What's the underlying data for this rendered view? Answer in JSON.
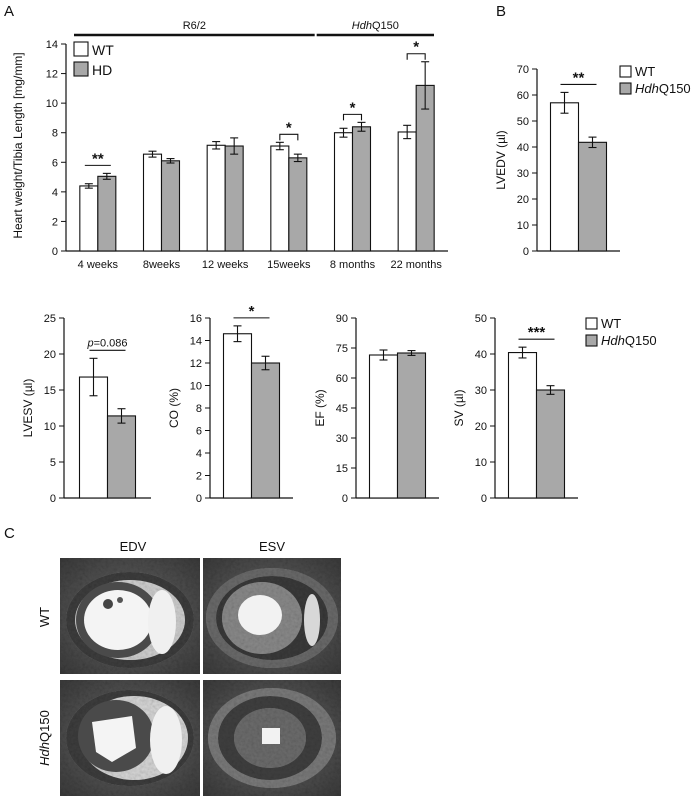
{
  "panels": {
    "a": "A",
    "b": "B",
    "c": "C"
  },
  "colors": {
    "wt": "#ffffff",
    "hd": "#a8a8a8",
    "stroke": "#111111"
  },
  "chart_data": [
    {
      "id": "panelA",
      "type": "bar",
      "ylabel": "Heart weight/Tibia Length [mg/mm]",
      "ylim": [
        0,
        14
      ],
      "yticks": [
        0,
        2,
        4,
        6,
        8,
        10,
        12,
        14
      ],
      "categories": [
        "4 weeks",
        "8weeks",
        "12 weeks",
        "15weeks",
        "8 months",
        "22 months"
      ],
      "legend": [
        "WT",
        "HD"
      ],
      "group_labels": [
        {
          "parts": [
            {
              "t": "R6/2",
              "i": false
            }
          ],
          "from": 0,
          "to": 3
        },
        {
          "parts": [
            {
              "t": "Hdh",
              "i": true
            },
            {
              "t": "Q150",
              "i": false
            }
          ],
          "from": 4,
          "to": 5
        }
      ],
      "series": [
        {
          "name": "WT",
          "values": [
            4.4,
            6.55,
            7.15,
            7.1,
            8.0,
            8.05
          ],
          "errors": [
            0.15,
            0.2,
            0.25,
            0.25,
            0.3,
            0.45
          ]
        },
        {
          "name": "HD",
          "values": [
            5.05,
            6.1,
            7.1,
            6.3,
            8.4,
            11.2
          ],
          "errors": [
            0.2,
            0.15,
            0.55,
            0.25,
            0.3,
            1.6
          ]
        }
      ],
      "significance": [
        {
          "category": 0,
          "label": "**"
        },
        {
          "category": 3,
          "label": "*"
        },
        {
          "category": 4,
          "label": "*"
        },
        {
          "category": 5,
          "label": "*"
        }
      ]
    },
    {
      "id": "panelB",
      "type": "bar",
      "ylabel": "LVEDV (µl)",
      "ylim": [
        0,
        70
      ],
      "yticks": [
        0,
        10,
        20,
        30,
        40,
        50,
        60,
        70
      ],
      "legend": [
        "WT",
        "HdhQ150"
      ],
      "series": [
        {
          "name": "WT",
          "values": [
            57.0
          ],
          "errors": [
            4.0
          ]
        },
        {
          "name": "HdhQ150",
          "values": [
            41.8
          ],
          "errors": [
            2.0
          ]
        }
      ],
      "significance": [
        {
          "label": "**"
        }
      ]
    },
    {
      "id": "lvesv",
      "type": "bar",
      "ylabel": "LVESV (µl)",
      "ylim": [
        0,
        25
      ],
      "yticks": [
        0,
        5,
        10,
        15,
        20,
        25
      ],
      "series": [
        {
          "name": "WT",
          "values": [
            16.8
          ],
          "errors": [
            2.6
          ]
        },
        {
          "name": "HdhQ150",
          "values": [
            11.4
          ],
          "errors": [
            1.0
          ]
        }
      ],
      "significance": [
        {
          "label": "p=0.086"
        }
      ]
    },
    {
      "id": "co",
      "type": "bar",
      "ylabel": "CO (%)",
      "ylim": [
        0,
        16
      ],
      "yticks": [
        0,
        2,
        4,
        6,
        8,
        10,
        12,
        14,
        16
      ],
      "series": [
        {
          "name": "WT",
          "values": [
            14.6
          ],
          "errors": [
            0.7
          ]
        },
        {
          "name": "HdhQ150",
          "values": [
            12.0
          ],
          "errors": [
            0.6
          ]
        }
      ],
      "significance": [
        {
          "label": "*"
        }
      ]
    },
    {
      "id": "ef",
      "type": "bar",
      "ylabel": "EF (%)",
      "ylim": [
        0,
        90
      ],
      "yticks": [
        0,
        15,
        30,
        45,
        60,
        75,
        90
      ],
      "series": [
        {
          "name": "WT",
          "values": [
            71.5
          ],
          "errors": [
            2.5
          ]
        },
        {
          "name": "HdhQ150",
          "values": [
            72.5
          ],
          "errors": [
            1.2
          ]
        }
      ],
      "significance": []
    },
    {
      "id": "sv",
      "type": "bar",
      "ylabel": "SV (µl)",
      "ylim": [
        0,
        50
      ],
      "yticks": [
        0,
        10,
        20,
        30,
        40,
        50
      ],
      "legend": [
        "WT",
        "HdhQ150"
      ],
      "series": [
        {
          "name": "WT",
          "values": [
            40.4
          ],
          "errors": [
            1.5
          ]
        },
        {
          "name": "HdhQ150",
          "values": [
            30.0
          ],
          "errors": [
            1.2
          ]
        }
      ],
      "significance": [
        {
          "label": "***"
        }
      ]
    }
  ],
  "mri": {
    "columns": [
      "EDV",
      "ESV"
    ],
    "rows": [
      {
        "parts": [
          {
            "t": "WT",
            "i": false
          }
        ]
      },
      {
        "parts": [
          {
            "t": "Hdh",
            "i": true
          },
          {
            "t": "Q150",
            "i": false
          }
        ]
      }
    ]
  }
}
